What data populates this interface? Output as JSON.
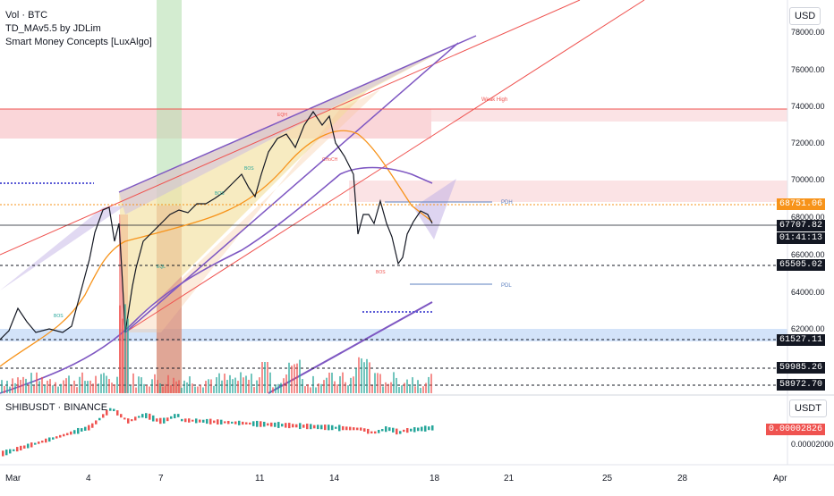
{
  "legend": {
    "line1": "Vol · BTC",
    "line2": "TD_MAv5.5 by JDLim",
    "line3": "Smart Money Concepts [LuxAlgo]"
  },
  "sub_legend": "SHIBUSDT · BINANCE",
  "axis": {
    "currency_main": "USD",
    "currency_sub": "USDT",
    "price_ticks": [
      "78000.00",
      "76000.00",
      "74000.00",
      "72000.00",
      "70000.00",
      "68000.00",
      "66000.00",
      "64000.00",
      "62000.00",
      "60000.00"
    ],
    "sub_ticks": [
      "0.00002000"
    ],
    "date_ticks": [
      "Mar",
      "4",
      "7",
      "11",
      "14",
      "18",
      "21",
      "25",
      "28",
      "Apr"
    ]
  },
  "tags": {
    "t1": "68751.06",
    "t2": "67707.82",
    "t2_time": "01:41:13",
    "t3": "65505.02",
    "t4": "61527.11",
    "t5": "59985.26",
    "t6": "58972.70",
    "sub_price": "0.00002826"
  },
  "annotations": {
    "pdh": "PDH",
    "pdl": "PDL",
    "weak_high": "Weak High",
    "bos": "BOS",
    "choch": "CHoCH",
    "eqh": "EQH",
    "eql": "EQL"
  },
  "colors": {
    "bull": "#26a69a",
    "bear": "#ef5350",
    "orange_ma": "#f7931a",
    "purple_ma": "#7e57c2",
    "zone_red": "#f8c8cc",
    "zone_blue": "#c8dcf8",
    "green_band": "#b6dfb0"
  },
  "chart_data": {
    "type": "candlestick",
    "symbol": "BTC",
    "currency": "USD",
    "ylim": [
      58500,
      78800
    ],
    "x_range": [
      "Mar 1",
      "Apr 1"
    ],
    "levels": [
      68751.06,
      67707.82,
      65505.02,
      61527.11,
      59985.26,
      58972.7
    ],
    "sub_chart": {
      "symbol": "SHIBUSDT",
      "exchange": "BINANCE",
      "last": 2.826e-05
    }
  }
}
